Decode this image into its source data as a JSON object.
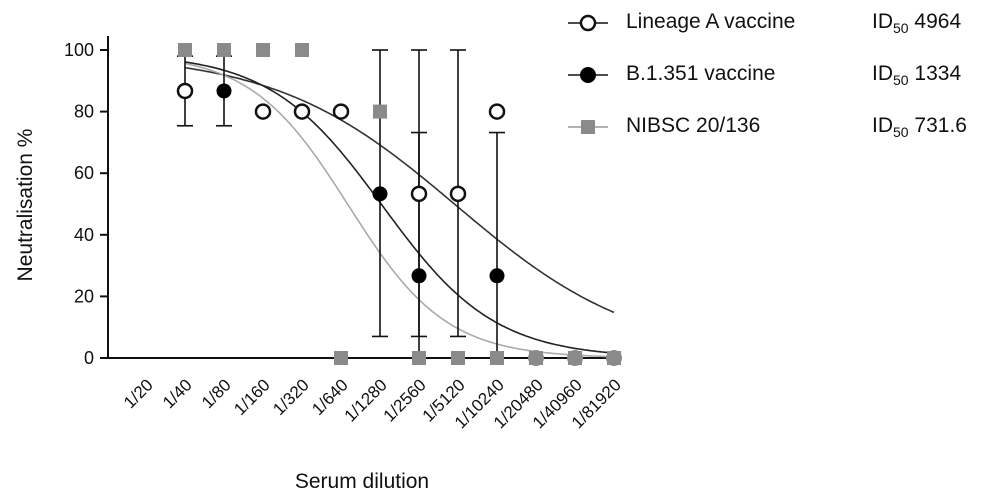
{
  "chart_data": {
    "type": "line",
    "xlabel": "Serum dilution",
    "ylabel": "Neutralisation %",
    "x_categories": [
      "1/20",
      "1/40",
      "1/80",
      "1/160",
      "1/320",
      "1/640",
      "1/1280",
      "1/2560",
      "1/5120",
      "1/10240",
      "1/20480",
      "1/40960",
      "1/81920"
    ],
    "ylim": [
      0,
      100
    ],
    "yticks": [
      "0",
      "20",
      "40",
      "60",
      "80",
      "100"
    ],
    "series": [
      {
        "name": "Lineage A vaccine",
        "id50_label": "ID",
        "id50_sub": "50",
        "id50_value": "4964",
        "marker": "open-circle",
        "color": "#111111",
        "curve_color": "#333333",
        "points": [
          {
            "x": "1/40",
            "y": 86.7,
            "err_low": 75.4,
            "err_high": 98.0
          },
          {
            "x": "1/160",
            "y": 80
          },
          {
            "x": "1/320",
            "y": 80
          },
          {
            "x": "1/640",
            "y": 80
          },
          {
            "x": "1/2560",
            "y": 53.3,
            "err_low": 7,
            "err_high": 100
          },
          {
            "x": "1/5120",
            "y": 53.3,
            "err_low": 7,
            "err_high": 100
          },
          {
            "x": "1/10240",
            "y": 80
          }
        ]
      },
      {
        "name": "B.1.351 vaccine",
        "id50_label": "ID",
        "id50_sub": "50",
        "id50_value": "1334",
        "marker": "filled-circle",
        "color": "#000000",
        "curve_color": "#222222",
        "points": [
          {
            "x": "1/80",
            "y": 86.7,
            "err_low": 75.4,
            "err_high": 98.0
          },
          {
            "x": "1/1280",
            "y": 53.3,
            "err_low": 7,
            "err_high": 100
          },
          {
            "x": "1/2560",
            "y": 26.7,
            "err_low": 0,
            "err_high": 73.2
          },
          {
            "x": "1/10240",
            "y": 26.7,
            "err_low": 0,
            "err_high": 73.2
          }
        ]
      },
      {
        "name": "NIBSC 20/136",
        "id50_label": "ID",
        "id50_sub": "50",
        "id50_value": "731.6",
        "marker": "filled-square",
        "color": "#8a8a8a",
        "curve_color": "#aaaaaa",
        "points": [
          {
            "x": "1/40",
            "y": 100
          },
          {
            "x": "1/80",
            "y": 100
          },
          {
            "x": "1/160",
            "y": 100
          },
          {
            "x": "1/320",
            "y": 100
          },
          {
            "x": "1/640",
            "y": 0
          },
          {
            "x": "1/1280",
            "y": 80
          },
          {
            "x": "1/2560",
            "y": 0
          },
          {
            "x": "1/5120",
            "y": 0
          },
          {
            "x": "1/10240",
            "y": 0
          },
          {
            "x": "1/20480",
            "y": 0
          },
          {
            "x": "1/40960",
            "y": 0
          },
          {
            "x": "1/81920",
            "y": 0
          }
        ]
      }
    ],
    "shared_zero_points": [
      "1/20480",
      "1/40960",
      "1/81920"
    ],
    "legend_position": "top-right"
  }
}
